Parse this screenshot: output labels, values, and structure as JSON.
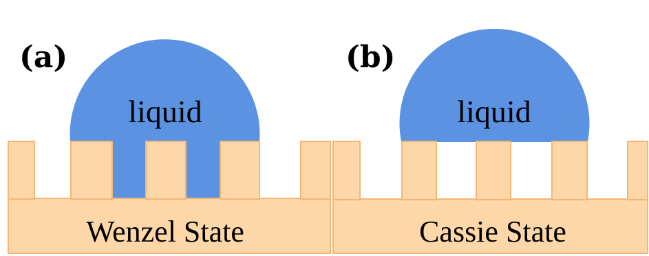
{
  "panels": {
    "a": {
      "label": "(a)",
      "liquid": "liquid",
      "state": "Wenzel State"
    },
    "b": {
      "label": "(b)",
      "liquid": "liquid",
      "state": "Cassie State"
    }
  },
  "colors": {
    "liquid": "#5b93e2",
    "substrate": "#fdd7a8",
    "substrate_edge": "#f3b676",
    "background": "#ffffff"
  }
}
